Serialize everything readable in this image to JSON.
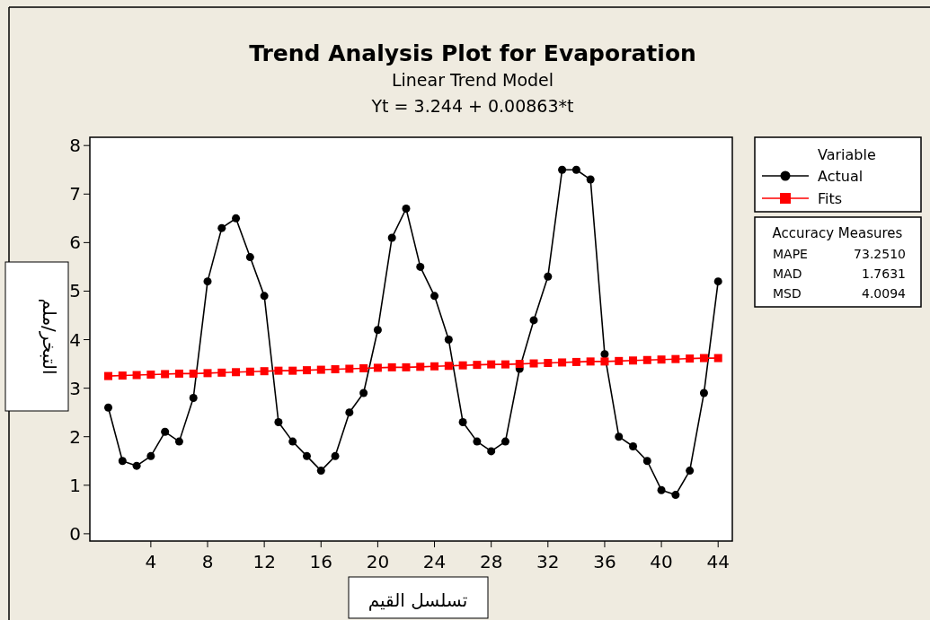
{
  "chart_data": {
    "type": "line",
    "title": "Trend Analysis Plot for Evaporation",
    "subtitle": "Linear Trend Model\nYt = 3.244 + 0.00863*t",
    "xlabel": "تسلسل القيم",
    "ylabel": "التبخر/ملم",
    "legend_title": "Variable",
    "legend": "right",
    "grid": false,
    "line_style": "solid",
    "x": [
      1,
      2,
      3,
      4,
      5,
      6,
      7,
      8,
      9,
      10,
      11,
      12,
      13,
      14,
      15,
      16,
      17,
      18,
      19,
      20,
      21,
      22,
      23,
      24,
      25,
      26,
      27,
      28,
      29,
      30,
      31,
      32,
      33,
      34,
      35,
      36,
      37,
      38,
      39,
      40,
      41,
      42,
      43,
      44
    ],
    "series": [
      {
        "name": "Actual",
        "color": "#000000",
        "marker": "circle",
        "values": [
          2.6,
          1.5,
          1.4,
          1.6,
          2.1,
          1.9,
          2.8,
          5.2,
          6.3,
          6.5,
          5.7,
          4.9,
          2.3,
          1.9,
          1.6,
          1.3,
          1.6,
          2.5,
          2.9,
          4.2,
          6.1,
          6.7,
          5.5,
          4.9,
          4.0,
          2.3,
          1.9,
          1.7,
          1.9,
          3.4,
          4.4,
          5.3,
          7.5,
          7.5,
          7.3,
          3.7,
          2.0,
          1.8,
          1.5,
          0.9,
          0.8,
          1.3,
          2.9,
          5.2
        ]
      },
      {
        "name": "Fits",
        "color": "#ff0000",
        "marker": "square",
        "values": [
          3.25,
          3.26,
          3.27,
          3.28,
          3.29,
          3.3,
          3.3,
          3.31,
          3.32,
          3.33,
          3.34,
          3.35,
          3.36,
          3.36,
          3.37,
          3.38,
          3.39,
          3.4,
          3.41,
          3.42,
          3.43,
          3.43,
          3.44,
          3.45,
          3.46,
          3.47,
          3.48,
          3.49,
          3.49,
          3.5,
          3.51,
          3.52,
          3.53,
          3.54,
          3.55,
          3.55,
          3.56,
          3.57,
          3.58,
          3.59,
          3.6,
          3.61,
          3.62,
          3.62
        ]
      }
    ],
    "xlim": [
      -0.3,
      45
    ],
    "xticks": [
      4,
      8,
      12,
      16,
      20,
      24,
      28,
      32,
      36,
      40,
      44
    ],
    "ylim": [
      -0.15,
      8.17
    ],
    "yticks": [
      0,
      1,
      2,
      3,
      4,
      5,
      6,
      7,
      8
    ],
    "annotations": [
      "Accuracy Measures",
      "MAPE",
      "73.2510",
      "MAD",
      "1.7631",
      "MSD",
      "4.0094"
    ]
  }
}
